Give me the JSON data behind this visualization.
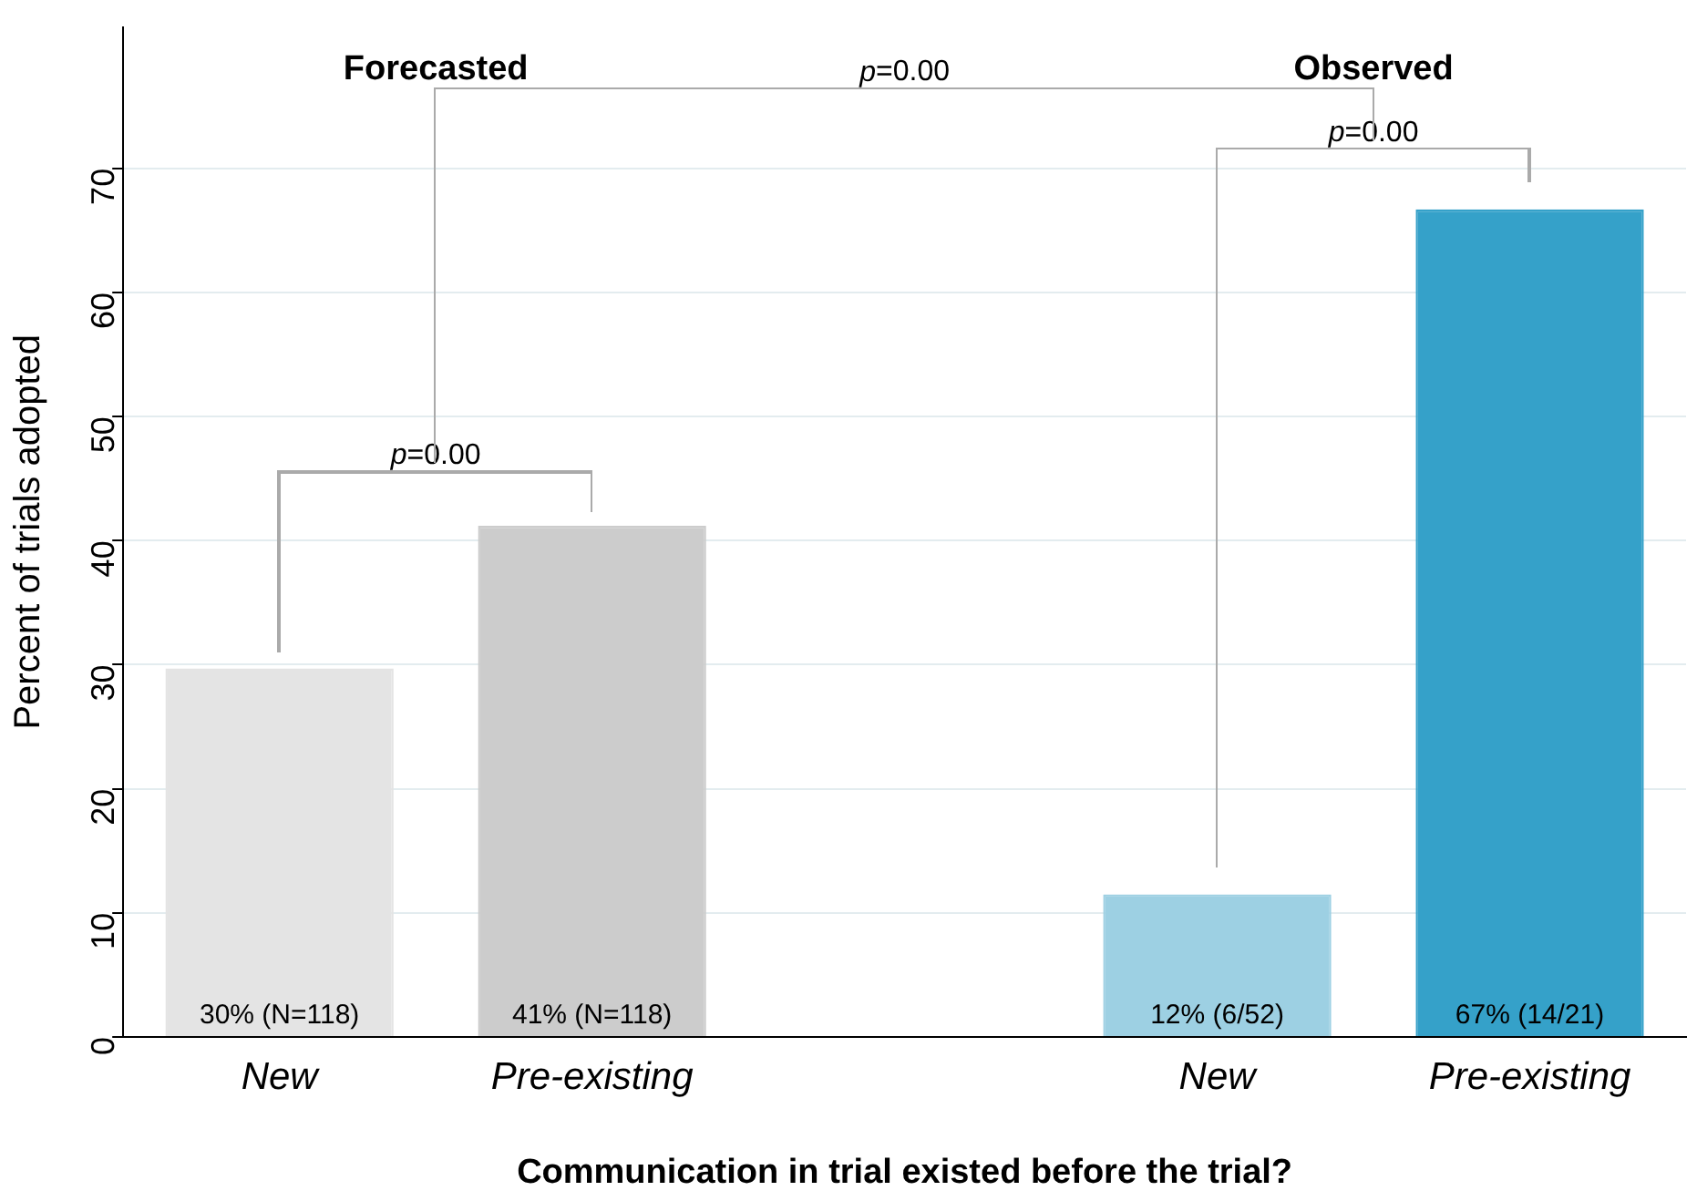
{
  "chart_data": {
    "type": "bar",
    "xlabel": "Communication in trial existed before the trial?",
    "ylabel": "Percent of trials adopted",
    "categories": [
      "New",
      "Pre-existing",
      null,
      "New",
      "Pre-existing"
    ],
    "values": [
      29.7,
      41.2,
      null,
      11.5,
      66.7
    ],
    "colors": [
      "#e4e4e4",
      "#cccccc",
      "#ffffff",
      "#9dd0e3",
      "#35a1c9"
    ],
    "value_labels": [
      "30% (N=118)",
      "41% (N=118)",
      null,
      "12% (6/52)",
      "67% (14/21)"
    ],
    "ylim": [
      0,
      81.4
    ],
    "yticks": [
      0,
      10,
      20,
      30,
      40,
      50,
      60,
      70
    ],
    "grid": "y",
    "legend": false,
    "annotations": [
      "Forecasted",
      "Observed",
      "p=0.00",
      "p=0.00",
      "p=0.00"
    ]
  }
}
